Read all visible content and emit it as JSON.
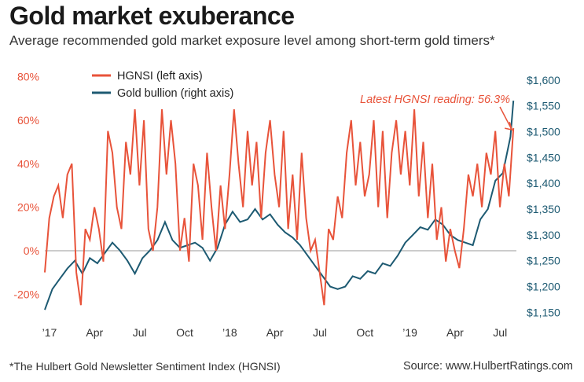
{
  "header": {
    "title": "Gold market exuberance",
    "subtitle": "Average recommended gold market exposure level among short-term gold timers*"
  },
  "footer": {
    "footnote": "*The Hulbert Gold Newsletter Sentiment Index (HGNSI)",
    "source": "Source: www.HulbertRatings.com"
  },
  "colors": {
    "hgnsi": "#e8533a",
    "gold": "#1d5a72",
    "zero_line": "#999999"
  },
  "chart_data": {
    "type": "line",
    "title": "Gold market exuberance",
    "x_tick_labels": [
      "’17",
      "Apr",
      "Jul",
      "Oct",
      "’18",
      "Apr",
      "Jul",
      "Oct",
      "’19",
      "Apr",
      "Jul"
    ],
    "x_tick_month_index": [
      0,
      3,
      6,
      9,
      12,
      15,
      18,
      21,
      24,
      27,
      30
    ],
    "x_range_months": [
      0,
      31.4
    ],
    "left_axis": {
      "label": "HGNSI (left axis)",
      "ticks": [
        -20,
        0,
        20,
        40,
        60,
        80
      ],
      "tick_labels": [
        "-20%",
        "0%",
        "20%",
        "40%",
        "60%",
        "80%"
      ],
      "range": [
        -30,
        82
      ]
    },
    "right_axis": {
      "label": "Gold bullion (right axis)",
      "ticks": [
        1150,
        1200,
        1250,
        1300,
        1350,
        1400,
        1450,
        1500,
        1550,
        1600
      ],
      "tick_labels": [
        "$1,150",
        "$1,200",
        "$1,250",
        "$1,300",
        "$1,350",
        "$1,400",
        "$1,450",
        "$1,500",
        "$1,550",
        "$1,600"
      ],
      "range": [
        1143,
        1615
      ]
    },
    "legend": [
      {
        "label": "HGNSI (left axis)",
        "series": "hgnsi"
      },
      {
        "label": "Gold bullion (right axis)",
        "series": "gold"
      }
    ],
    "annotation": {
      "text": "Latest HGNSI reading: 56.3%",
      "x_month": 31.2,
      "y_value": 56.3
    },
    "series": [
      {
        "name": "HGNSI",
        "axis": "left",
        "x": [
          0,
          0.3,
          0.6,
          0.9,
          1.2,
          1.5,
          1.8,
          2.1,
          2.4,
          2.7,
          3.0,
          3.3,
          3.6,
          3.9,
          4.2,
          4.5,
          4.8,
          5.1,
          5.4,
          5.7,
          6.0,
          6.3,
          6.6,
          6.9,
          7.2,
          7.5,
          7.8,
          8.1,
          8.4,
          8.7,
          9.0,
          9.3,
          9.6,
          9.9,
          10.2,
          10.5,
          10.8,
          11.1,
          11.4,
          11.7,
          12.0,
          12.3,
          12.6,
          12.9,
          13.2,
          13.5,
          13.8,
          14.1,
          14.4,
          14.7,
          15.0,
          15.3,
          15.6,
          15.9,
          16.2,
          16.5,
          16.8,
          17.1,
          17.4,
          17.7,
          18.0,
          18.3,
          18.6,
          18.9,
          19.2,
          19.5,
          19.8,
          20.1,
          20.4,
          20.7,
          21.0,
          21.3,
          21.6,
          21.9,
          22.2,
          22.5,
          22.8,
          23.1,
          23.4,
          23.7,
          24.0,
          24.3,
          24.6,
          24.9,
          25.2,
          25.5,
          25.8,
          26.1,
          26.4,
          26.7,
          27.0,
          27.3,
          27.6,
          27.9,
          28.2,
          28.5,
          28.8,
          29.1,
          29.4,
          29.7,
          30.0,
          30.3,
          30.6,
          30.9,
          31.2
        ],
        "values": [
          -10,
          15,
          25,
          30,
          15,
          35,
          40,
          -10,
          -25,
          10,
          5,
          20,
          10,
          -5,
          55,
          45,
          20,
          10,
          50,
          35,
          65,
          30,
          60,
          10,
          0,
          20,
          65,
          35,
          60,
          40,
          0,
          15,
          -5,
          40,
          30,
          5,
          45,
          20,
          0,
          30,
          10,
          35,
          65,
          40,
          20,
          55,
          30,
          50,
          15,
          45,
          60,
          35,
          20,
          55,
          10,
          35,
          5,
          45,
          15,
          0,
          5,
          -10,
          -25,
          10,
          5,
          25,
          15,
          45,
          60,
          30,
          50,
          25,
          35,
          60,
          20,
          55,
          15,
          45,
          60,
          35,
          55,
          30,
          65,
          25,
          50,
          15,
          40,
          5,
          20,
          -5,
          10,
          0,
          -8,
          10,
          35,
          25,
          40,
          20,
          45,
          35,
          55,
          20,
          40,
          25,
          56.3
        ]
      },
      {
        "name": "Gold bullion",
        "axis": "right",
        "x": [
          0,
          0.5,
          1.0,
          1.5,
          2.0,
          2.5,
          3.0,
          3.5,
          4.0,
          4.5,
          5.0,
          5.5,
          6.0,
          6.5,
          7.0,
          7.5,
          8.0,
          8.5,
          9.0,
          9.5,
          10.0,
          10.5,
          11.0,
          11.5,
          12.0,
          12.5,
          13.0,
          13.5,
          14.0,
          14.5,
          15.0,
          15.5,
          16.0,
          16.5,
          17.0,
          17.5,
          18.0,
          18.5,
          19.0,
          19.5,
          20.0,
          20.5,
          21.0,
          21.5,
          22.0,
          22.5,
          23.0,
          23.5,
          24.0,
          24.5,
          25.0,
          25.5,
          26.0,
          26.5,
          27.0,
          27.5,
          28.0,
          28.5,
          29.0,
          29.5,
          30.0,
          30.5,
          31.0,
          31.2
        ],
        "values": [
          1155,
          1195,
          1215,
          1235,
          1250,
          1225,
          1255,
          1245,
          1265,
          1285,
          1270,
          1250,
          1225,
          1255,
          1270,
          1290,
          1325,
          1290,
          1275,
          1280,
          1285,
          1275,
          1250,
          1275,
          1320,
          1345,
          1325,
          1330,
          1350,
          1330,
          1340,
          1320,
          1305,
          1295,
          1280,
          1260,
          1240,
          1220,
          1200,
          1195,
          1200,
          1220,
          1215,
          1230,
          1225,
          1245,
          1240,
          1260,
          1285,
          1300,
          1315,
          1310,
          1330,
          1320,
          1300,
          1290,
          1285,
          1280,
          1330,
          1350,
          1405,
          1420,
          1490,
          1560
        ]
      }
    ]
  }
}
